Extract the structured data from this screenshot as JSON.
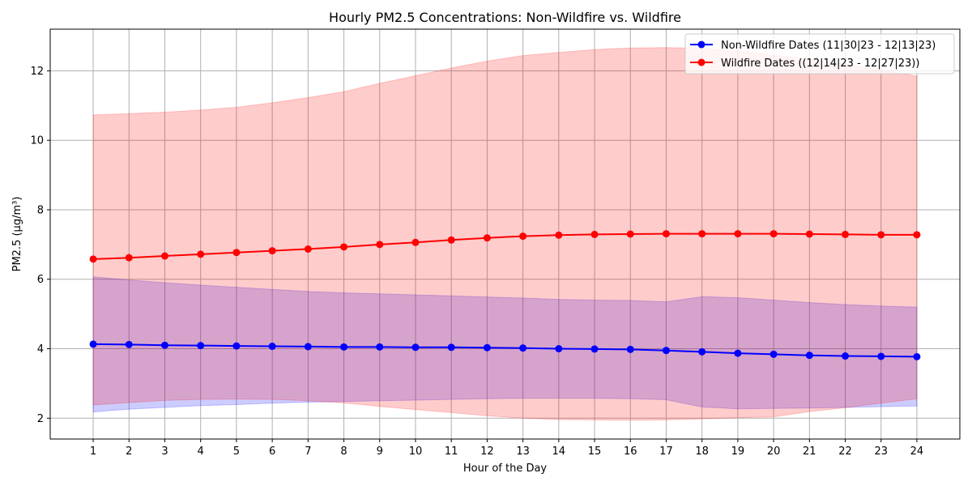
{
  "chart_data": {
    "type": "line",
    "title": "Hourly PM2.5 Concentrations: Non-Wildfire vs. Wildfire",
    "xlabel": "Hour of the Day",
    "ylabel": "PM2.5 (µg/m³)",
    "x": [
      1,
      2,
      3,
      4,
      5,
      6,
      7,
      8,
      9,
      10,
      11,
      12,
      13,
      14,
      15,
      16,
      17,
      18,
      19,
      20,
      21,
      22,
      23,
      24
    ],
    "x_tick_labels": [
      "1",
      "2",
      "3",
      "4",
      "5",
      "6",
      "7",
      "8",
      "9",
      "10",
      "11",
      "12",
      "13",
      "14",
      "15",
      "16",
      "17",
      "18",
      "19",
      "20",
      "21",
      "22",
      "23",
      "24"
    ],
    "xlim": [
      -0.2,
      25.2
    ],
    "ylim": [
      1.4,
      13.2
    ],
    "y_ticks": [
      2,
      4,
      6,
      8,
      10,
      12
    ],
    "y_tick_labels": [
      "2",
      "4",
      "6",
      "8",
      "10",
      "12"
    ],
    "grid": true,
    "legend_position": "top-right",
    "series": [
      {
        "name": "Non-Wildfire Dates (11|30|23 - 12|13|23)",
        "color": "#0000ff",
        "band_color": "#0000ff",
        "values": [
          4.13,
          4.12,
          4.1,
          4.09,
          4.08,
          4.07,
          4.06,
          4.05,
          4.05,
          4.04,
          4.04,
          4.03,
          4.02,
          4.0,
          3.99,
          3.98,
          3.95,
          3.91,
          3.87,
          3.84,
          3.81,
          3.79,
          3.78,
          3.77
        ],
        "band_upper": [
          6.07,
          5.98,
          5.9,
          5.83,
          5.77,
          5.71,
          5.65,
          5.61,
          5.58,
          5.55,
          5.52,
          5.49,
          5.46,
          5.42,
          5.4,
          5.39,
          5.35,
          5.5,
          5.47,
          5.4,
          5.33,
          5.27,
          5.23,
          5.2
        ],
        "band_lower": [
          2.18,
          2.26,
          2.31,
          2.36,
          2.39,
          2.43,
          2.46,
          2.48,
          2.5,
          2.52,
          2.54,
          2.56,
          2.57,
          2.57,
          2.57,
          2.56,
          2.53,
          2.32,
          2.27,
          2.28,
          2.29,
          2.31,
          2.33,
          2.35
        ]
      },
      {
        "name": "Wildfire Dates ((12|14|23 - 12|27|23))",
        "color": "#ff0000",
        "band_color": "#ff0000",
        "values": [
          6.58,
          6.62,
          6.67,
          6.72,
          6.77,
          6.82,
          6.87,
          6.93,
          7.0,
          7.06,
          7.13,
          7.19,
          7.24,
          7.27,
          7.29,
          7.3,
          7.31,
          7.31,
          7.31,
          7.31,
          7.3,
          7.29,
          7.28,
          7.28
        ],
        "band_upper": [
          10.73,
          10.77,
          10.81,
          10.87,
          10.95,
          11.08,
          11.23,
          11.4,
          11.64,
          11.86,
          12.08,
          12.28,
          12.44,
          12.53,
          12.61,
          12.66,
          12.67,
          12.65,
          12.58,
          12.45,
          12.34,
          12.2,
          12.02,
          11.85
        ],
        "band_lower": [
          2.38,
          2.45,
          2.51,
          2.54,
          2.55,
          2.54,
          2.5,
          2.44,
          2.34,
          2.25,
          2.16,
          2.07,
          2.0,
          1.96,
          1.95,
          1.94,
          1.95,
          1.98,
          2.01,
          2.04,
          2.19,
          2.3,
          2.43,
          2.56
        ]
      }
    ]
  }
}
